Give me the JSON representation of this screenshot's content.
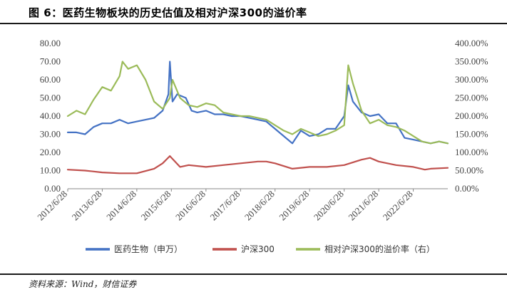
{
  "header": {
    "title": "图 6：医药生物板块的历史估值及相对沪深300的溢价率"
  },
  "footer": {
    "source": "资料来源：Wind，财信证券"
  },
  "colors": {
    "pe": "#4472C4",
    "hs300": "#C0504D",
    "premium": "#9BBB59",
    "axis": "#888888"
  },
  "chart_data": {
    "type": "line",
    "title": "图 6：医药生物板块的历史估值及相对沪深300的溢价率",
    "x_ticks": [
      "2012/6/28",
      "2013/6/28",
      "2014/6/28",
      "2015/6/28",
      "2016/6/28",
      "2017/6/28",
      "2018/6/28",
      "2019/6/28",
      "2020/6/28",
      "2021/6/28",
      "2022/6/28"
    ],
    "xlim": [
      "2012/6/28",
      "2023/6/28"
    ],
    "y_left": {
      "ylim": [
        0,
        80
      ],
      "ticks": [
        "0.00",
        "10.00",
        "20.00",
        "30.00",
        "40.00",
        "50.00",
        "60.00",
        "70.00",
        "80.00"
      ]
    },
    "y_right": {
      "ylim": [
        0,
        400
      ],
      "ticks": [
        "0.00%",
        "50.00%",
        "100.00%",
        "150.00%",
        "200.00%",
        "250.00%",
        "300.00%",
        "350.00%",
        "400.00%"
      ]
    },
    "legend_position": "bottom",
    "grid": false,
    "series": [
      {
        "name": "医药生物（申万）",
        "axis": "left",
        "color": "#4472C4",
        "x": [
          "2012/6/28",
          "2012/9/28",
          "2012/12/28",
          "2013/3/28",
          "2013/6/28",
          "2013/9/28",
          "2013/12/28",
          "2014/3/28",
          "2014/6/28",
          "2014/9/28",
          "2014/12/28",
          "2015/3/28",
          "2015/5/28",
          "2015/6/12",
          "2015/7/10",
          "2015/8/28",
          "2015/11/28",
          "2016/1/28",
          "2016/3/28",
          "2016/6/28",
          "2016/9/28",
          "2016/12/28",
          "2017/3/28",
          "2017/6/28",
          "2017/9/28",
          "2017/12/28",
          "2018/3/28",
          "2018/6/28",
          "2018/9/28",
          "2018/12/28",
          "2019/3/28",
          "2019/6/28",
          "2019/9/28",
          "2019/12/28",
          "2020/3/28",
          "2020/6/28",
          "2020/8/10",
          "2020/9/28",
          "2020/12/28",
          "2021/3/28",
          "2021/6/28",
          "2021/9/28",
          "2021/12/28",
          "2022/3/28",
          "2022/6/28",
          "2022/9/28",
          "2022/12/28",
          "2023/3/28",
          "2023/6/28"
        ],
        "values": [
          31,
          31,
          30,
          34,
          36,
          36,
          38,
          36,
          37,
          38,
          39,
          43,
          52,
          70,
          48,
          52,
          50,
          43,
          42,
          43,
          41,
          41,
          40,
          40,
          39,
          38,
          37,
          33,
          29,
          25,
          32,
          29,
          30,
          33,
          33,
          40,
          57,
          48,
          42,
          40,
          41,
          36,
          36,
          28,
          27,
          26,
          25,
          26,
          25
        ]
      },
      {
        "name": "沪深300",
        "axis": "left",
        "color": "#C0504D",
        "x": [
          "2012/6/28",
          "2012/12/28",
          "2013/6/28",
          "2013/12/28",
          "2014/6/28",
          "2014/12/28",
          "2015/3/28",
          "2015/6/12",
          "2015/9/28",
          "2015/12/28",
          "2016/6/28",
          "2016/12/28",
          "2017/6/28",
          "2017/12/28",
          "2018/3/28",
          "2018/6/28",
          "2018/12/28",
          "2019/6/28",
          "2019/12/28",
          "2020/6/28",
          "2020/12/28",
          "2021/3/28",
          "2021/6/28",
          "2021/12/28",
          "2022/6/28",
          "2022/10/28",
          "2022/12/28",
          "2023/6/28"
        ],
        "values": [
          10.5,
          10,
          9,
          8.5,
          8.5,
          11,
          14,
          18,
          12,
          13,
          12,
          13,
          14,
          15,
          15,
          14,
          11,
          12,
          12,
          13,
          16,
          17,
          15,
          13,
          12,
          10.5,
          11,
          11.5
        ]
      },
      {
        "name": "相对沪深300的溢价率（右）",
        "axis": "right",
        "color": "#9BBB59",
        "x": [
          "2012/6/28",
          "2012/9/28",
          "2012/12/28",
          "2013/3/28",
          "2013/6/28",
          "2013/9/28",
          "2013/12/28",
          "2014/1/28",
          "2014/3/28",
          "2014/6/28",
          "2014/9/28",
          "2014/12/28",
          "2015/3/28",
          "2015/6/12",
          "2015/7/10",
          "2015/9/28",
          "2015/12/28",
          "2016/3/28",
          "2016/6/28",
          "2016/9/28",
          "2016/12/28",
          "2017/3/28",
          "2017/6/28",
          "2017/9/28",
          "2017/12/28",
          "2018/3/28",
          "2018/6/28",
          "2018/9/28",
          "2018/12/28",
          "2019/3/28",
          "2019/6/28",
          "2019/9/28",
          "2019/12/28",
          "2020/3/28",
          "2020/6/28",
          "2020/8/10",
          "2020/9/28",
          "2020/12/28",
          "2021/3/28",
          "2021/6/28",
          "2021/9/28",
          "2021/12/28",
          "2022/3/28",
          "2022/6/28",
          "2022/9/28",
          "2022/12/28",
          "2023/3/28",
          "2023/6/28"
        ],
        "values": [
          200,
          215,
          205,
          245,
          280,
          270,
          310,
          350,
          330,
          340,
          300,
          240,
          220,
          250,
          300,
          250,
          230,
          225,
          235,
          230,
          210,
          205,
          200,
          200,
          195,
          190,
          175,
          160,
          150,
          165,
          155,
          145,
          150,
          160,
          175,
          340,
          290,
          215,
          180,
          190,
          175,
          170,
          160,
          145,
          130,
          125,
          130,
          125
        ]
      }
    ]
  }
}
